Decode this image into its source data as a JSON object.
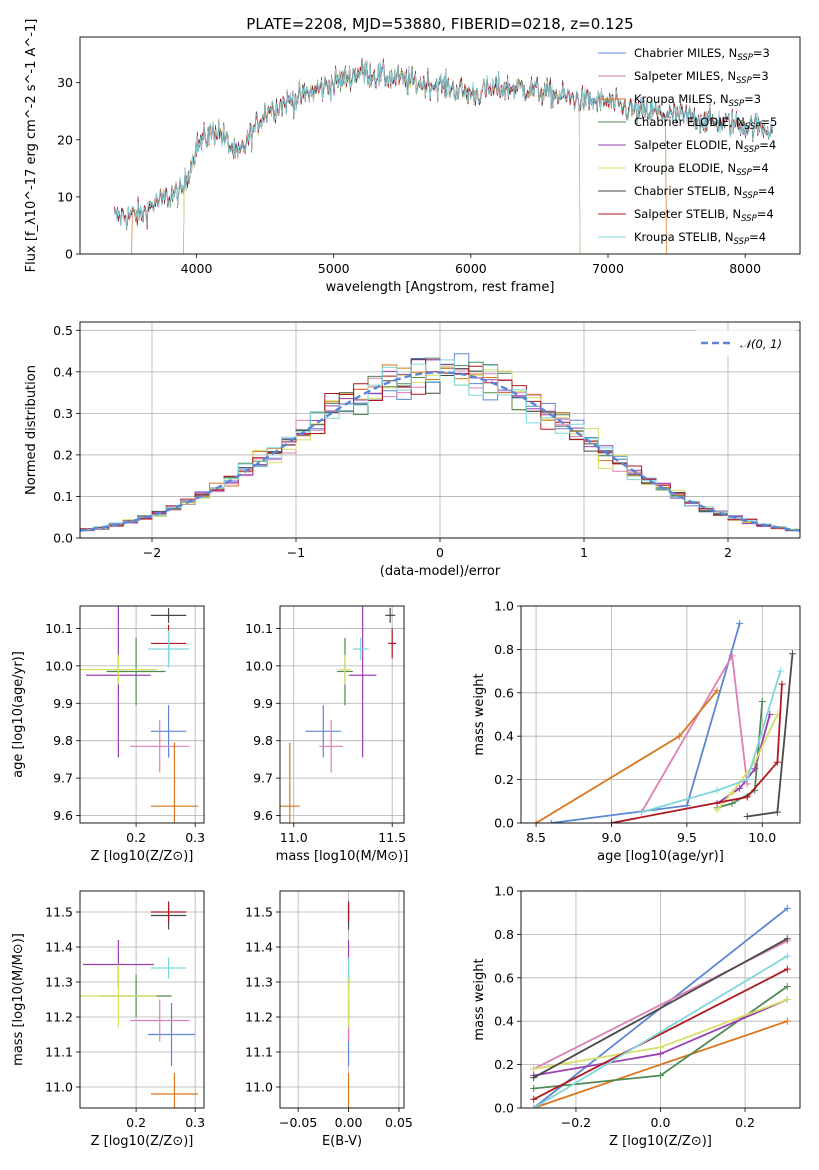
{
  "colors": {
    "Chabrier MILES": "#5b86d6",
    "Salpeter MILES": "#e07fb6",
    "Kroupa MILES": "#d9761e",
    "Chabrier ELODIE": "#4f8a55",
    "Salpeter ELODIE": "#9b3fb3",
    "Kroupa ELODIE": "#d8df68",
    "Chabrier STELIB": "#4a4a4a",
    "Salpeter STELIB": "#b0171f",
    "Kroupa STELIB": "#7fd6dc"
  },
  "legend_entries": [
    "Chabrier MILES, N_SSP=3",
    "Salpeter MILES, N_SSP=3",
    "Kroupa MILES, N_SSP=3",
    "Chabrier ELODIE, N_SSP=5",
    "Salpeter ELODIE, N_SSP=4",
    "Kroupa ELODIE, N_SSP=4",
    "Chabrier STELIB, N_SSP=4",
    "Salpeter STELIB, N_SSP=4",
    "Kroupa STELIB, N_SSP=4"
  ],
  "chart_data": [
    {
      "id": "spectrum",
      "type": "line",
      "title": "PLATE=2208, MJD=53880, FIBERID=0218, z=0.125",
      "xlabel": "wavelength [Angstrom, rest frame]",
      "ylabel": "Flux [f_λ10^-17 erg cm^-2 s^-1 A^-1]",
      "xlim": [
        3150,
        8400
      ],
      "ylim": [
        0,
        38
      ],
      "xticks": [
        4000,
        5000,
        6000,
        7000,
        8000
      ],
      "yticks": [
        0,
        10,
        20,
        30
      ],
      "continuum": {
        "x": [
          3400,
          3600,
          3700,
          3900,
          4000,
          4150,
          4300,
          4500,
          4700,
          4900,
          5200,
          5400,
          5600,
          5800,
          6000,
          6200,
          6400,
          6600,
          6800,
          7000,
          7200,
          7400,
          7600,
          7800,
          8000,
          8200
        ],
        "y": [
          6.5,
          7,
          9,
          11,
          19,
          22,
          17,
          25,
          27,
          29,
          32,
          31,
          30,
          29.5,
          28,
          29,
          29,
          28,
          27,
          26.5,
          25,
          24.5,
          24,
          23,
          22.5,
          22
        ]
      },
      "truncations": [
        {
          "series": "Kroupa MILES",
          "x_from": 3530,
          "x_to": 7420
        },
        {
          "series": "Kroupa ELODIE",
          "x_from": 3910,
          "x_to": 6790
        },
        {
          "series": "Salpeter ELODIE",
          "x_from": 3910,
          "x_to": 6790
        }
      ],
      "grid": false,
      "legend": "upper right"
    },
    {
      "id": "residual-histogram",
      "type": "histogram",
      "xlabel": "(data-model)/error",
      "ylabel": "Normed distribution",
      "xlim": [
        -2.5,
        2.5
      ],
      "ylim": [
        0,
        0.52
      ],
      "xticks": [
        -2,
        -1,
        0,
        1,
        2
      ],
      "yticks": [
        0.0,
        0.1,
        0.2,
        0.3,
        0.4,
        0.5
      ],
      "bin_width": 0.1,
      "reference": {
        "name": "N(0,1)",
        "label": "𝒩(0, 1)",
        "mean": 0,
        "sigma": 1
      },
      "grid": true,
      "legend": "upper right"
    },
    {
      "id": "age-vs-Z",
      "type": "errorbar",
      "xlabel": "Z [log10(Z/Z⊙)]",
      "ylabel": "age  [log10(age/yr)]",
      "xlim": [
        0.105,
        0.315
      ],
      "ylim": [
        9.58,
        10.16
      ],
      "xticks": [
        0.2,
        0.3
      ],
      "xtick_labels": [
        "0.2",
        "0.3"
      ],
      "yticks": [
        9.6,
        9.7,
        9.8,
        9.9,
        10.0,
        10.1
      ],
      "points": [
        {
          "series": "Chabrier MILES",
          "x": 0.255,
          "y": 9.825,
          "xerr": 0.03,
          "yerr": 0.07
        },
        {
          "series": "Salpeter MILES",
          "x": 0.24,
          "y": 9.785,
          "xerr": 0.05,
          "yerr": 0.07
        },
        {
          "series": "Kroupa MILES",
          "x": 0.265,
          "y": 9.625,
          "xerr": 0.04,
          "yerr": 0.17
        },
        {
          "series": "Chabrier ELODIE",
          "x": 0.2,
          "y": 9.985,
          "xerr": 0.05,
          "yerr": 0.09
        },
        {
          "series": "Salpeter ELODIE",
          "x": 0.17,
          "y": 9.975,
          "xerr": 0.055,
          "yerr": 0.22
        },
        {
          "series": "Kroupa ELODIE",
          "x": 0.17,
          "y": 9.99,
          "xerr": 0.065,
          "yerr": 0.04
        },
        {
          "series": "Chabrier STELIB",
          "x": 0.255,
          "y": 10.135,
          "xerr": 0.03,
          "yerr": 0.02
        },
        {
          "series": "Salpeter STELIB",
          "x": 0.255,
          "y": 10.06,
          "xerr": 0.03,
          "yerr": 0.05
        },
        {
          "series": "Kroupa STELIB",
          "x": 0.255,
          "y": 10.045,
          "xerr": 0.035,
          "yerr": 0.05
        }
      ],
      "grid": true
    },
    {
      "id": "age-vs-mass",
      "type": "errorbar",
      "xlabel": "mass [log10(M/M⊙)]",
      "xlim": [
        10.93,
        11.56
      ],
      "ylim": [
        9.58,
        10.16
      ],
      "xticks": [
        11.0,
        11.5
      ],
      "xtick_labels": [
        "11.0",
        "11.5"
      ],
      "yticks": [
        9.6,
        9.7,
        9.8,
        9.9,
        10.0,
        10.1
      ],
      "points": [
        {
          "series": "Chabrier MILES",
          "x": 11.15,
          "y": 9.825,
          "xerr": 0.09,
          "yerr": 0.07
        },
        {
          "series": "Salpeter MILES",
          "x": 11.19,
          "y": 9.785,
          "xerr": 0.06,
          "yerr": 0.07
        },
        {
          "series": "Kroupa MILES",
          "x": 10.98,
          "y": 9.625,
          "xerr": 0.05,
          "yerr": 0.17
        },
        {
          "series": "Chabrier ELODIE",
          "x": 11.26,
          "y": 9.985,
          "xerr": 0.04,
          "yerr": 0.09
        },
        {
          "series": "Salpeter ELODIE",
          "x": 11.35,
          "y": 9.975,
          "xerr": 0.07,
          "yerr": 0.22
        },
        {
          "series": "Kroupa ELODIE",
          "x": 11.26,
          "y": 9.99,
          "xerr": 0.03,
          "yerr": 0.04
        },
        {
          "series": "Chabrier STELIB",
          "x": 11.49,
          "y": 10.135,
          "xerr": 0.025,
          "yerr": 0.02
        },
        {
          "series": "Salpeter STELIB",
          "x": 11.5,
          "y": 10.06,
          "xerr": 0.02,
          "yerr": 0.04
        },
        {
          "series": "Kroupa STELIB",
          "x": 11.34,
          "y": 10.045,
          "xerr": 0.04,
          "yerr": 0.03
        }
      ],
      "grid": true
    },
    {
      "id": "weight-vs-age",
      "type": "line",
      "xlabel": "age  [log10(age/yr)]",
      "ylabel": "mass weight",
      "xlim": [
        8.4,
        10.25
      ],
      "ylim": [
        0.0,
        1.0
      ],
      "xticks": [
        8.5,
        9.0,
        9.5,
        10.0
      ],
      "yticks": [
        0.0,
        0.2,
        0.4,
        0.6,
        0.8,
        1.0
      ],
      "series": [
        {
          "name": "Chabrier MILES",
          "x": [
            8.6,
            9.5,
            9.85
          ],
          "y": [
            0.0,
            0.08,
            0.92
          ]
        },
        {
          "name": "Salpeter MILES",
          "x": [
            9.2,
            9.8,
            9.9
          ],
          "y": [
            0.05,
            0.77,
            0.18
          ]
        },
        {
          "name": "Kroupa MILES",
          "x": [
            8.5,
            9.45,
            9.7
          ],
          "y": [
            0.0,
            0.4,
            0.61
          ]
        },
        {
          "name": "Chabrier ELODIE",
          "x": [
            9.7,
            9.8,
            9.95,
            10.0
          ],
          "y": [
            0.07,
            0.09,
            0.15,
            0.56
          ]
        },
        {
          "name": "Salpeter ELODIE",
          "x": [
            9.7,
            9.85,
            9.95,
            10.05
          ],
          "y": [
            0.09,
            0.16,
            0.25,
            0.5
          ]
        },
        {
          "name": "Kroupa ELODIE",
          "x": [
            9.7,
            9.8,
            9.95,
            10.1
          ],
          "y": [
            0.06,
            0.14,
            0.28,
            0.5
          ]
        },
        {
          "name": "Chabrier STELIB",
          "x": [
            9.9,
            10.1,
            10.2
          ],
          "y": [
            0.03,
            0.05,
            0.78
          ]
        },
        {
          "name": "Salpeter STELIB",
          "x": [
            9.0,
            9.9,
            10.1,
            10.13
          ],
          "y": [
            0.0,
            0.12,
            0.28,
            0.64
          ]
        },
        {
          "name": "Kroupa STELIB",
          "x": [
            9.2,
            9.7,
            9.9,
            10.12
          ],
          "y": [
            0.05,
            0.15,
            0.2,
            0.7
          ]
        }
      ],
      "grid": true
    },
    {
      "id": "mass-vs-Z",
      "type": "errorbar",
      "xlabel": "Z [log10(Z/Z⊙)]",
      "ylabel": "mass [log10(M/M⊙)]",
      "xlim": [
        0.105,
        0.315
      ],
      "ylim": [
        10.94,
        11.56
      ],
      "xticks": [
        0.2,
        0.3
      ],
      "xtick_labels": [
        "0.2",
        "0.3"
      ],
      "yticks": [
        11.0,
        11.1,
        11.2,
        11.3,
        11.4,
        11.5
      ],
      "points": [
        {
          "series": "Chabrier MILES",
          "x": 0.26,
          "y": 11.15,
          "xerr": 0.04,
          "yerr": 0.09
        },
        {
          "series": "Salpeter MILES",
          "x": 0.24,
          "y": 11.19,
          "xerr": 0.05,
          "yerr": 0.06
        },
        {
          "series": "Kroupa MILES",
          "x": 0.265,
          "y": 10.98,
          "xerr": 0.04,
          "yerr": 0.06
        },
        {
          "series": "Chabrier ELODIE",
          "x": 0.2,
          "y": 11.26,
          "xerr": 0.06,
          "yerr": 0.06
        },
        {
          "series": "Salpeter ELODIE",
          "x": 0.17,
          "y": 11.35,
          "xerr": 0.06,
          "yerr": 0.07
        },
        {
          "series": "Kroupa ELODIE",
          "x": 0.17,
          "y": 11.26,
          "xerr": 0.065,
          "yerr": 0.09
        },
        {
          "series": "Chabrier STELIB",
          "x": 0.255,
          "y": 11.49,
          "xerr": 0.03,
          "yerr": 0.04
        },
        {
          "series": "Salpeter STELIB",
          "x": 0.255,
          "y": 11.5,
          "xerr": 0.03,
          "yerr": 0.03
        },
        {
          "series": "Kroupa STELIB",
          "x": 0.255,
          "y": 11.34,
          "xerr": 0.03,
          "yerr": 0.03
        }
      ],
      "grid": true
    },
    {
      "id": "mass-vs-ebv",
      "type": "errorbar",
      "xlabel": "E(B-V)",
      "xlim": [
        -0.068,
        0.055
      ],
      "ylim": [
        10.94,
        11.56
      ],
      "xticks": [
        -0.05,
        0.0,
        0.05
      ],
      "xtick_labels": [
        "−0.05",
        "0.00",
        "0.05"
      ],
      "yticks": [
        11.0,
        11.1,
        11.2,
        11.3,
        11.4,
        11.5
      ],
      "points": [
        {
          "series": "Chabrier MILES",
          "x": 0.0,
          "y": 11.15,
          "xerr": 0,
          "yerr": 0.09
        },
        {
          "series": "Salpeter MILES",
          "x": 0.0,
          "y": 11.19,
          "xerr": 0,
          "yerr": 0.06
        },
        {
          "series": "Kroupa MILES",
          "x": 0.0,
          "y": 10.98,
          "xerr": 0,
          "yerr": 0.06
        },
        {
          "series": "Chabrier ELODIE",
          "x": 0.0,
          "y": 11.26,
          "xerr": 0,
          "yerr": 0.06
        },
        {
          "series": "Salpeter ELODIE",
          "x": 0.0,
          "y": 11.35,
          "xerr": 0,
          "yerr": 0.07
        },
        {
          "series": "Kroupa ELODIE",
          "x": 0.0,
          "y": 11.26,
          "xerr": 0,
          "yerr": 0.09
        },
        {
          "series": "Chabrier STELIB",
          "x": 0.0,
          "y": 11.49,
          "xerr": 0,
          "yerr": 0.04
        },
        {
          "series": "Salpeter STELIB",
          "x": 0.0,
          "y": 11.5,
          "xerr": 0,
          "yerr": 0.03
        },
        {
          "series": "Kroupa STELIB",
          "x": 0.0,
          "y": 11.34,
          "xerr": 0,
          "yerr": 0.03
        }
      ],
      "grid": true
    },
    {
      "id": "weight-vs-Z",
      "type": "line",
      "xlabel": "Z [log10(Z/Z⊙)]",
      "ylabel": "mass weight",
      "xlim": [
        -0.33,
        0.33
      ],
      "ylim": [
        0.0,
        1.0
      ],
      "xticks": [
        -0.2,
        0.0,
        0.2
      ],
      "xtick_labels": [
        "−0.2",
        "0.0",
        "0.2"
      ],
      "yticks": [
        0.0,
        0.2,
        0.4,
        0.6,
        0.8,
        1.0
      ],
      "series": [
        {
          "name": "Chabrier MILES",
          "x": [
            -0.3,
            0.3
          ],
          "y": [
            0.0,
            0.92
          ]
        },
        {
          "name": "Salpeter MILES",
          "x": [
            -0.3,
            0.3
          ],
          "y": [
            0.18,
            0.77
          ]
        },
        {
          "name": "Kroupa MILES",
          "x": [
            -0.3,
            0.3
          ],
          "y": [
            0.0,
            0.4
          ]
        },
        {
          "name": "Chabrier ELODIE",
          "x": [
            -0.3,
            0.0,
            0.3
          ],
          "y": [
            0.09,
            0.15,
            0.56
          ]
        },
        {
          "name": "Salpeter ELODIE",
          "x": [
            -0.3,
            0.0,
            0.3
          ],
          "y": [
            0.15,
            0.25,
            0.5
          ]
        },
        {
          "name": "Kroupa ELODIE",
          "x": [
            -0.3,
            0.0,
            0.3
          ],
          "y": [
            0.18,
            0.28,
            0.5
          ]
        },
        {
          "name": "Chabrier STELIB",
          "x": [
            -0.3,
            0.3
          ],
          "y": [
            0.14,
            0.78
          ]
        },
        {
          "name": "Salpeter STELIB",
          "x": [
            -0.3,
            0.3
          ],
          "y": [
            0.04,
            0.64
          ]
        },
        {
          "name": "Kroupa STELIB",
          "x": [
            -0.3,
            0.3
          ],
          "y": [
            0.0,
            0.7
          ]
        }
      ],
      "grid": true
    }
  ]
}
